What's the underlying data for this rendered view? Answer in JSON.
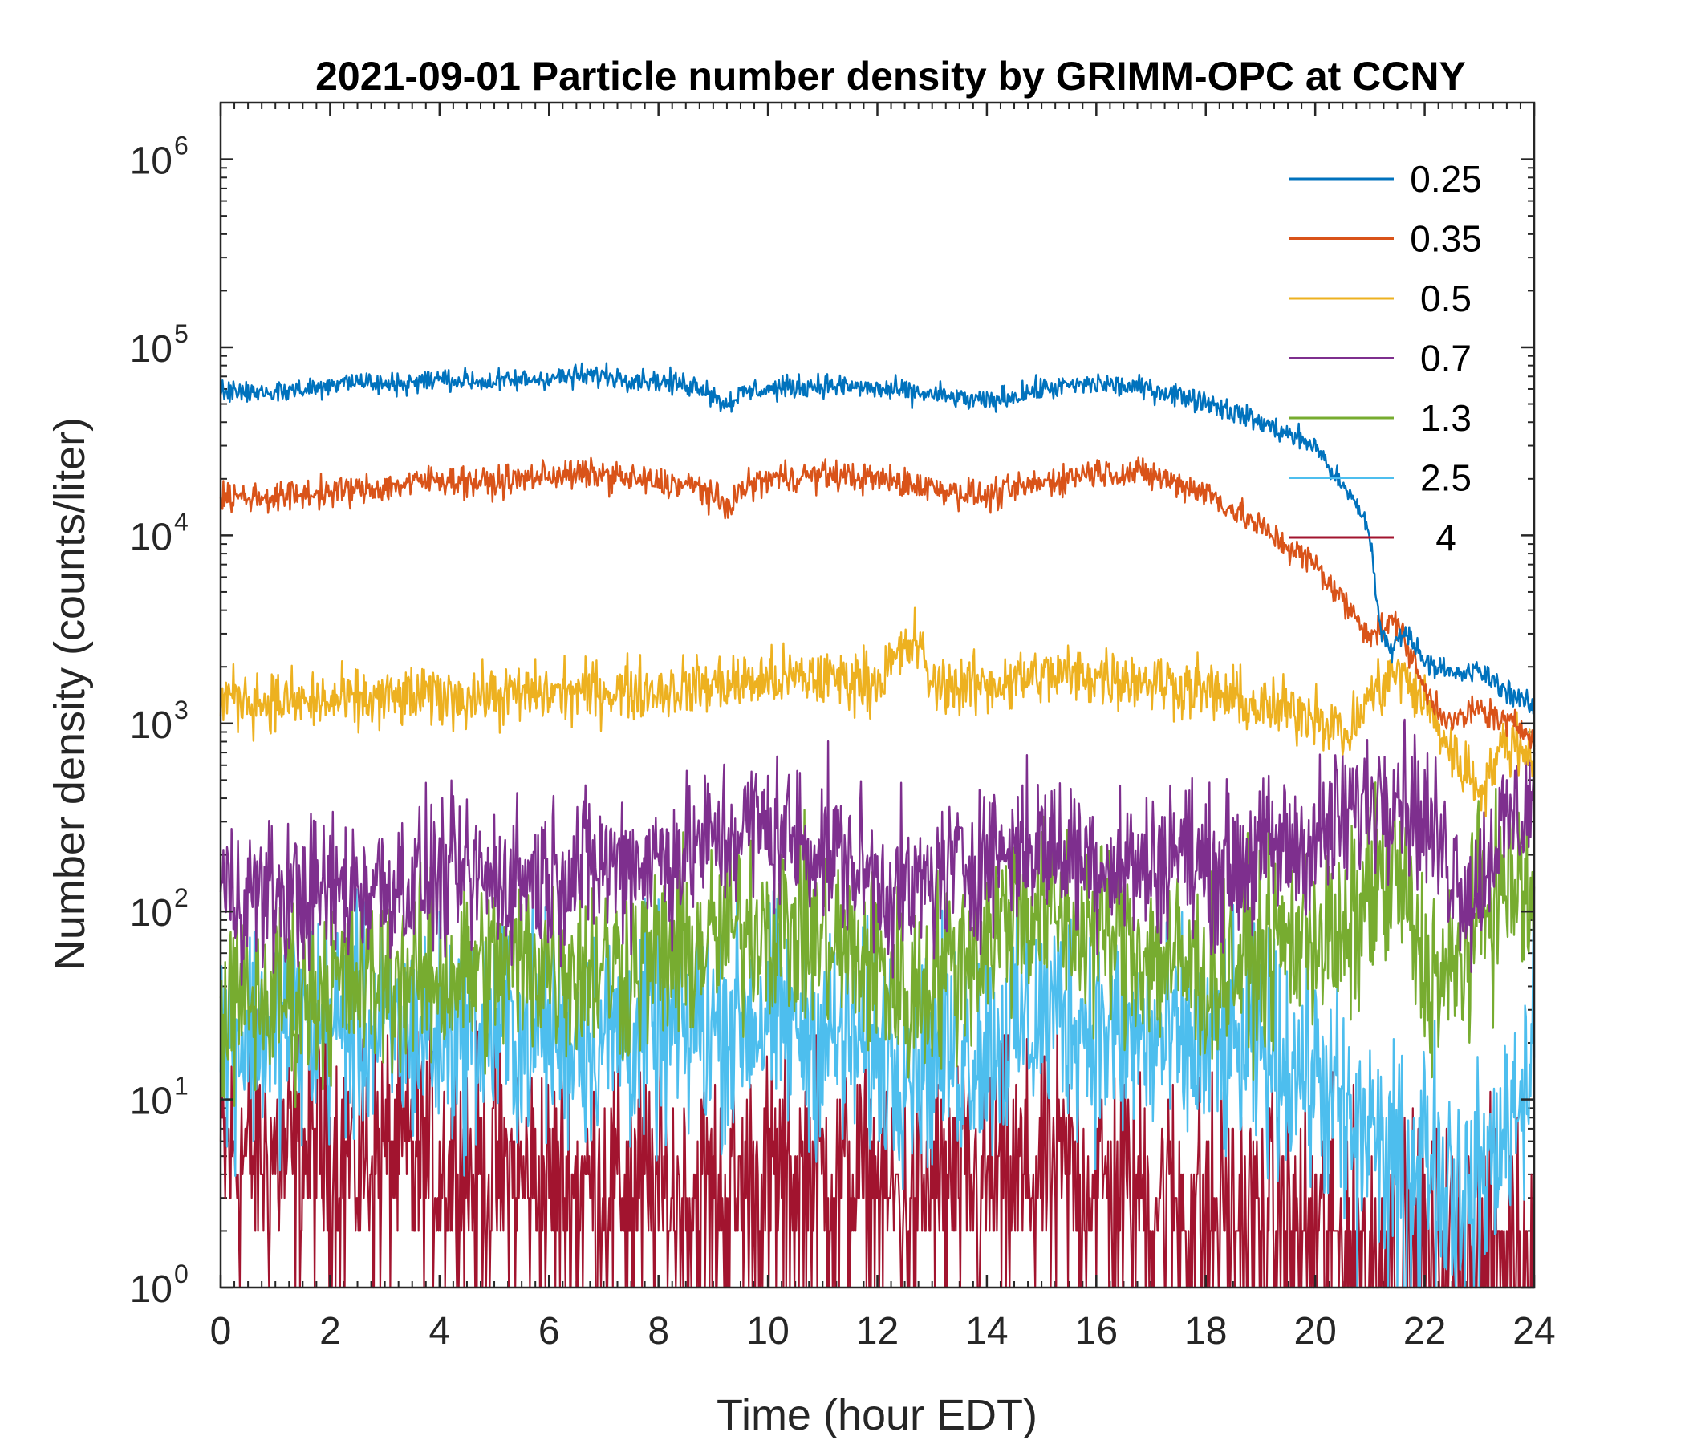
{
  "chart_data": {
    "type": "line",
    "title": "2021-09-01 Particle number density by GRIMM-OPC at CCNY",
    "xlabel": "Time (hour EDT)",
    "ylabel": "Number density (counts/liter)",
    "xlim": [
      0,
      24
    ],
    "ylim": [
      1,
      2000000
    ],
    "yscale": "log",
    "xticks": [
      0,
      2,
      4,
      6,
      8,
      10,
      12,
      14,
      16,
      18,
      20,
      22,
      24
    ],
    "yticks": [
      {
        "value": 1,
        "base": "10",
        "exp": "0"
      },
      {
        "value": 10,
        "base": "10",
        "exp": "1"
      },
      {
        "value": 100,
        "base": "10",
        "exp": "2"
      },
      {
        "value": 1000,
        "base": "10",
        "exp": "3"
      },
      {
        "value": 10000,
        "base": "10",
        "exp": "4"
      },
      {
        "value": 100000,
        "base": "10",
        "exp": "5"
      },
      {
        "value": 1000000,
        "base": "10",
        "exp": "6"
      }
    ],
    "legend_position": "top-right",
    "series": [
      {
        "name": "0.25",
        "color": "#0072BD",
        "x": [
          0,
          1,
          2,
          2.2,
          3,
          4,
          5,
          6,
          7,
          8,
          8.8,
          9.2,
          9.6,
          10,
          11,
          12,
          13,
          14,
          15,
          16,
          17,
          18,
          19,
          20,
          20.5,
          20.8,
          21,
          21.2,
          21.4,
          21.6,
          22,
          22.5,
          23,
          23.5,
          24
        ],
        "values": [
          58000,
          58000,
          62000,
          68000,
          63000,
          68000,
          65000,
          69000,
          71000,
          66000,
          62000,
          50000,
          58000,
          60000,
          63000,
          60000,
          56000,
          51000,
          60000,
          64000,
          60000,
          52000,
          40000,
          30000,
          18000,
          14000,
          10000,
          3000,
          2400,
          3200,
          2200,
          1800,
          1900,
          1500,
          1200
        ]
      },
      {
        "name": "0.35",
        "color": "#D95319",
        "x": [
          0,
          1,
          2,
          3,
          4,
          5,
          6,
          7,
          8,
          8.8,
          9.2,
          9.6,
          10,
          11,
          12,
          13,
          14,
          15,
          16,
          17,
          18,
          19,
          20,
          20.5,
          21,
          21.5,
          22,
          22.5,
          23,
          23.5,
          24
        ],
        "values": [
          16000,
          16000,
          17000,
          18000,
          20000,
          19000,
          21000,
          21000,
          19000,
          18000,
          14000,
          18000,
          20000,
          21000,
          20000,
          18000,
          16000,
          19000,
          22000,
          21000,
          17000,
          11000,
          7000,
          4500,
          3000,
          3500,
          1500,
          1000,
          1200,
          1000,
          900
        ]
      },
      {
        "name": "0.5",
        "color": "#EDB120",
        "x": [
          0,
          1,
          2,
          3,
          4,
          5,
          6,
          7,
          8,
          9,
          10,
          11,
          12,
          12.7,
          13,
          14,
          15,
          16,
          17,
          18,
          19,
          20,
          20.6,
          21,
          21.5,
          22,
          22.5,
          23,
          23.5,
          24
        ],
        "values": [
          1400,
          1300,
          1300,
          1350,
          1400,
          1400,
          1450,
          1500,
          1500,
          1600,
          1700,
          1750,
          1700,
          2800,
          1600,
          1600,
          1800,
          1800,
          1700,
          1500,
          1200,
          1150,
          850,
          1400,
          1900,
          1300,
          700,
          450,
          800,
          700
        ]
      },
      {
        "name": "0.7",
        "color": "#7E2F8E",
        "x": [
          0,
          1,
          2,
          3,
          4,
          5,
          6,
          7,
          8,
          9,
          9.8,
          11,
          12,
          12.6,
          13,
          14,
          14.8,
          16,
          17,
          17.5,
          18,
          19,
          20,
          20.5,
          21,
          21.5,
          22,
          22.5,
          22.9,
          23.3,
          24
        ],
        "values": [
          130,
          120,
          130,
          140,
          150,
          150,
          160,
          180,
          190,
          230,
          290,
          220,
          150,
          120,
          150,
          200,
          230,
          190,
          170,
          230,
          160,
          200,
          240,
          300,
          400,
          500,
          300,
          180,
          120,
          250,
          400
        ]
      },
      {
        "name": "1.3",
        "color": "#77AC30",
        "x": [
          0,
          1,
          2,
          3,
          4,
          5,
          6,
          7,
          8,
          9,
          10,
          11,
          12,
          12.6,
          13,
          14,
          14.6,
          15.5,
          16,
          17,
          18,
          19,
          20,
          20.5,
          21,
          21.5,
          22,
          22.5,
          23,
          23.5,
          24
        ],
        "values": [
          30,
          35,
          40,
          45,
          45,
          50,
          55,
          50,
          55,
          70,
          90,
          70,
          50,
          35,
          45,
          70,
          110,
          90,
          80,
          60,
          45,
          60,
          80,
          60,
          130,
          150,
          50,
          40,
          100,
          140,
          110
        ]
      },
      {
        "name": "2.5",
        "color": "#4DBEEE",
        "x": [
          0,
          1,
          2,
          3,
          4,
          5,
          6,
          7,
          8,
          9,
          10,
          11,
          12,
          13,
          14,
          15,
          15.5,
          16,
          17,
          18,
          19,
          20,
          20.5,
          21,
          21.5,
          22,
          22.5,
          23,
          23.5,
          24
        ],
        "values": [
          22,
          24,
          25,
          22,
          22,
          23,
          23,
          22,
          22,
          25,
          28,
          22,
          18,
          17,
          20,
          28,
          30,
          23,
          20,
          18,
          18,
          14,
          8,
          6,
          4,
          6,
          4,
          3,
          8,
          18
        ]
      },
      {
        "name": "4",
        "color": "#A2142F",
        "x": [
          0,
          1,
          2,
          3,
          4,
          5,
          6,
          7,
          8,
          9,
          10,
          11,
          12,
          13,
          14,
          15,
          16,
          17,
          18,
          19,
          20,
          21,
          22,
          23,
          24
        ],
        "values": [
          5,
          5,
          5,
          5,
          4.5,
          4,
          3.5,
          3.5,
          3,
          3,
          3.5,
          4,
          3,
          3,
          3.5,
          4,
          3.5,
          3,
          2.5,
          2,
          2,
          1.5,
          1.5,
          1.5,
          1.5
        ]
      }
    ]
  }
}
